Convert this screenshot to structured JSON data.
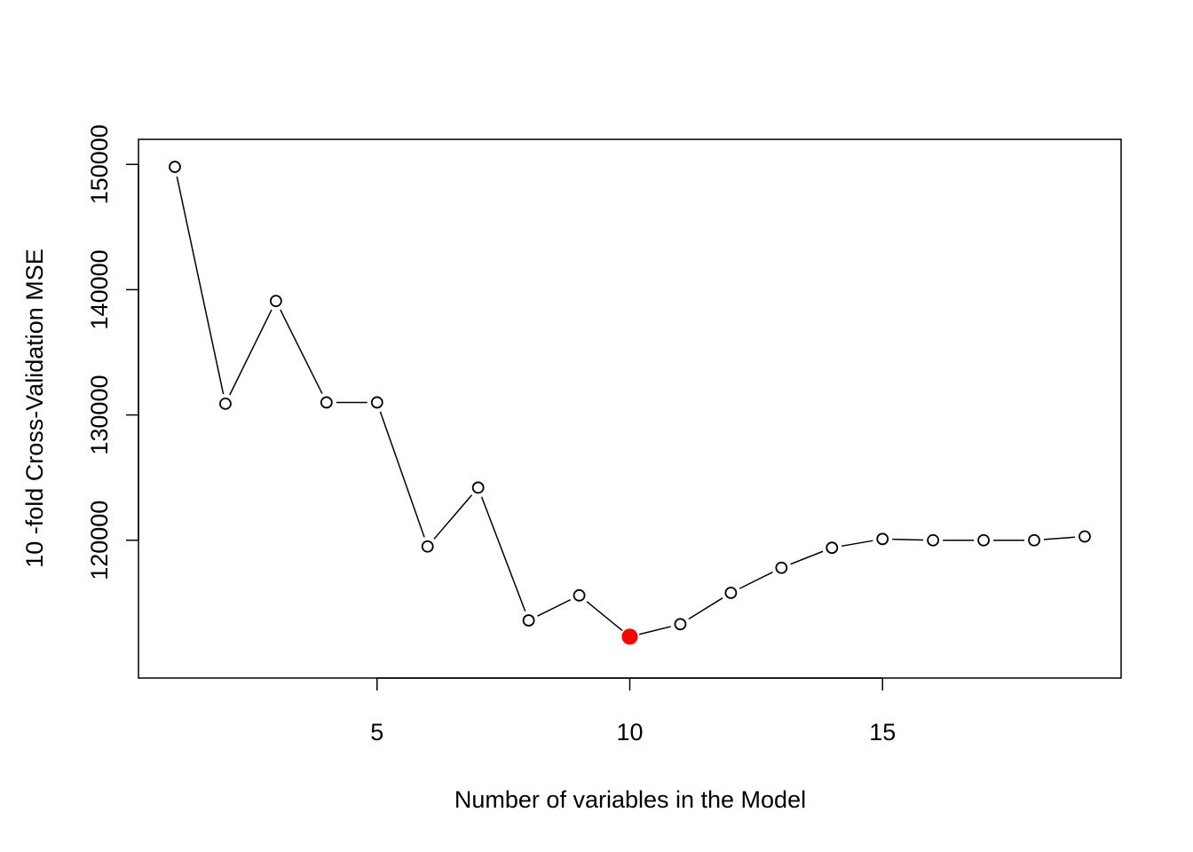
{
  "chart_data": {
    "type": "line",
    "title": "",
    "xlabel": "Number of variables in the Model",
    "ylabel": "10 -fold Cross-Validation MSE",
    "xlim": [
      0.28,
      19.72
    ],
    "ylim": [
      109000,
      152000
    ],
    "xticks": [
      5,
      10,
      15
    ],
    "yticks": [
      120000,
      130000,
      140000,
      150000
    ],
    "x": [
      1,
      2,
      3,
      4,
      5,
      6,
      7,
      8,
      9,
      10,
      11,
      12,
      13,
      14,
      15,
      16,
      17,
      18,
      19
    ],
    "series": [
      {
        "values": [
          149800,
          130900,
          139100,
          131000,
          131000,
          119500,
          124200,
          113600,
          115600,
          112300,
          113300,
          115800,
          117800,
          119400,
          120100,
          120000,
          120000,
          120000,
          120300
        ],
        "marker": "open-circle",
        "line_style": "overplotted-b"
      }
    ],
    "highlight": {
      "x": 10,
      "y": 112300,
      "color": "#ff0000"
    },
    "grid": false,
    "legend": "none",
    "colors": {
      "line": "#000000",
      "highlight": "#ff0000"
    }
  }
}
